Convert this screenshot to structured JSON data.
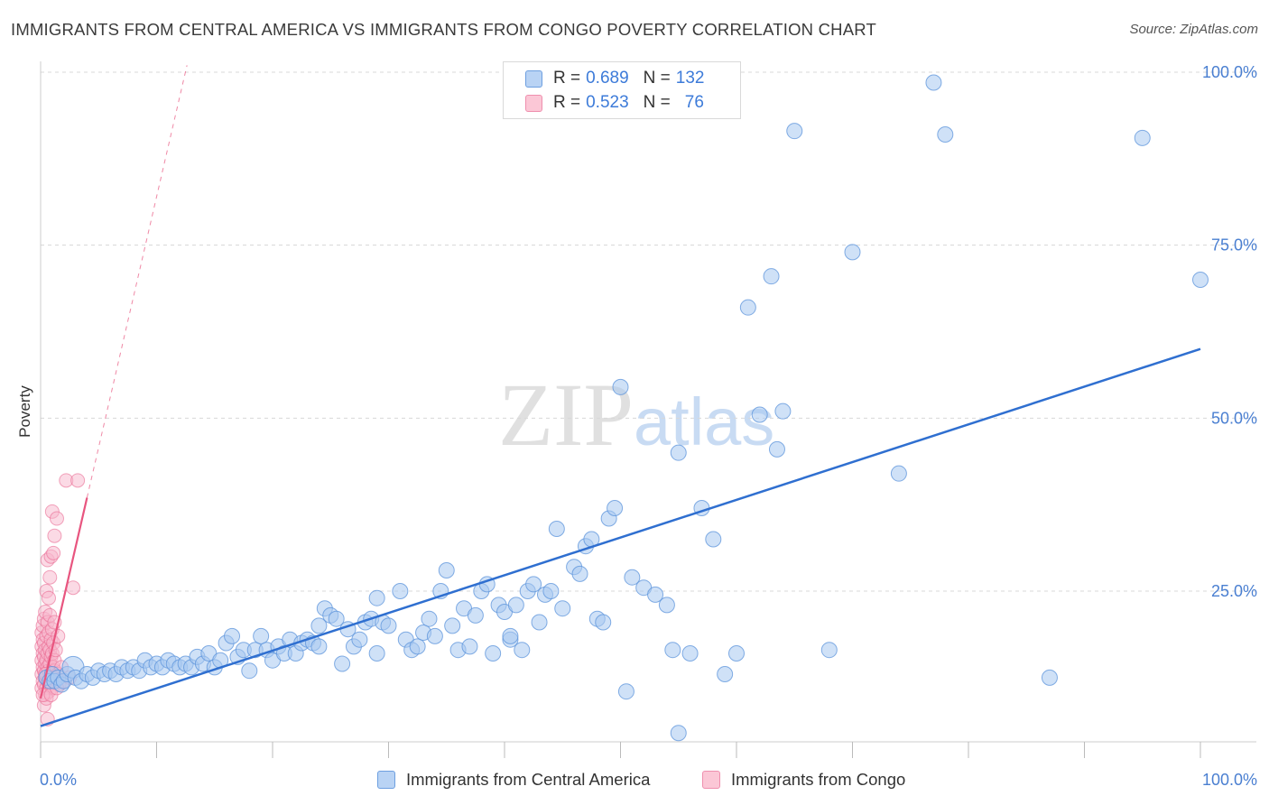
{
  "title": "IMMIGRANTS FROM CENTRAL AMERICA VS IMMIGRANTS FROM CONGO POVERTY CORRELATION CHART",
  "source": "Source: ZipAtlas.com",
  "watermark": {
    "zip": "ZIP",
    "atlas": "atlas"
  },
  "legend": {
    "rows": [
      {
        "r_label": "R = ",
        "r_value": "0.689",
        "n_label": "N = ",
        "n_value": "132"
      },
      {
        "r_label": "R = ",
        "r_value": "0.523",
        "n_label": "N = ",
        "n_value": "76"
      }
    ]
  },
  "colors": {
    "blue_fill": "#a8c8f0",
    "blue_stroke": "#5b93db",
    "blue_line": "#2f6fd0",
    "pink_fill": "#f7b6cb",
    "pink_stroke": "#e96a93",
    "pink_line": "#e8557f",
    "grid": "#d8d8d8",
    "tick_text": "#4a7fd1"
  },
  "chart_data": {
    "type": "scatter",
    "title": "IMMIGRANTS FROM CENTRAL AMERICA VS IMMIGRANTS FROM CONGO POVERTY CORRELATION CHART",
    "xlabel": "",
    "ylabel": "Poverty",
    "xlim": [
      0,
      100
    ],
    "ylim": [
      0,
      105
    ],
    "x_tick_labels": [
      "0.0%",
      "100.0%"
    ],
    "y_tick_labels": [
      "25.0%",
      "50.0%",
      "75.0%",
      "100.0%"
    ],
    "y_ticks": [
      25,
      50,
      75,
      100
    ],
    "grid": true,
    "legend_position": "top-center",
    "series": [
      {
        "name": "Immigrants from Central America",
        "color": "#a8c8f0",
        "trend": {
          "x": [
            0,
            100
          ],
          "y": [
            5.5,
            60
          ]
        },
        "points": [
          [
            0.5,
            12.5
          ],
          [
            0.8,
            12.0
          ],
          [
            1.0,
            13.0
          ],
          [
            1.2,
            12.0
          ],
          [
            1.5,
            12.5
          ],
          [
            1.8,
            11.5
          ],
          [
            2.0,
            12.0
          ],
          [
            2.3,
            13.0
          ],
          [
            2.8,
            14.0
          ],
          [
            3.0,
            12.5
          ],
          [
            3.5,
            12.0
          ],
          [
            4.0,
            13.0
          ],
          [
            4.5,
            12.5
          ],
          [
            5.0,
            13.5
          ],
          [
            5.5,
            13.0
          ],
          [
            6.0,
            13.5
          ],
          [
            6.5,
            13.0
          ],
          [
            7.0,
            14.0
          ],
          [
            7.5,
            13.5
          ],
          [
            8.0,
            14.0
          ],
          [
            8.5,
            13.5
          ],
          [
            9.0,
            15.0
          ],
          [
            9.5,
            14.0
          ],
          [
            10.0,
            14.5
          ],
          [
            10.5,
            14.0
          ],
          [
            11.0,
            15.0
          ],
          [
            11.5,
            14.5
          ],
          [
            12.0,
            14.0
          ],
          [
            12.5,
            14.5
          ],
          [
            13.0,
            14.0
          ],
          [
            13.5,
            15.5
          ],
          [
            14.0,
            14.5
          ],
          [
            14.5,
            16.0
          ],
          [
            15.0,
            14.0
          ],
          [
            15.5,
            15.0
          ],
          [
            16.0,
            17.5
          ],
          [
            16.5,
            18.5
          ],
          [
            17.0,
            15.5
          ],
          [
            17.5,
            16.5
          ],
          [
            18.0,
            13.5
          ],
          [
            18.5,
            16.5
          ],
          [
            19.0,
            18.5
          ],
          [
            19.5,
            16.5
          ],
          [
            20.0,
            15.0
          ],
          [
            20.5,
            17.0
          ],
          [
            21.0,
            16.0
          ],
          [
            21.5,
            18.0
          ],
          [
            22.0,
            16.0
          ],
          [
            22.5,
            17.5
          ],
          [
            23.0,
            18.0
          ],
          [
            23.5,
            17.5
          ],
          [
            24.0,
            20.0
          ],
          [
            24.5,
            22.5
          ],
          [
            25.0,
            21.5
          ],
          [
            25.5,
            21.0
          ],
          [
            26.0,
            14.5
          ],
          [
            26.5,
            19.5
          ],
          [
            27.0,
            17.0
          ],
          [
            27.5,
            18.0
          ],
          [
            28.0,
            20.5
          ],
          [
            28.5,
            21.0
          ],
          [
            29.0,
            24.0
          ],
          [
            29.5,
            20.5
          ],
          [
            30.0,
            20.0
          ],
          [
            31.0,
            25.0
          ],
          [
            31.5,
            18.0
          ],
          [
            32.0,
            16.5
          ],
          [
            32.5,
            17.0
          ],
          [
            33.0,
            19.0
          ],
          [
            33.5,
            21.0
          ],
          [
            34.0,
            18.5
          ],
          [
            34.5,
            25.0
          ],
          [
            35.0,
            28.0
          ],
          [
            35.5,
            20.0
          ],
          [
            36.0,
            16.5
          ],
          [
            36.5,
            22.5
          ],
          [
            37.0,
            17.0
          ],
          [
            37.5,
            21.5
          ],
          [
            38.0,
            25.0
          ],
          [
            38.5,
            26.0
          ],
          [
            39.0,
            16.0
          ],
          [
            39.5,
            23.0
          ],
          [
            40.0,
            22.0
          ],
          [
            40.5,
            18.0
          ],
          [
            41.0,
            23.0
          ],
          [
            41.5,
            16.5
          ],
          [
            42.0,
            25.0
          ],
          [
            42.5,
            26.0
          ],
          [
            43.0,
            20.5
          ],
          [
            43.5,
            24.5
          ],
          [
            44.0,
            25.0
          ],
          [
            44.5,
            34.0
          ],
          [
            45.0,
            22.5
          ],
          [
            46.0,
            28.5
          ],
          [
            46.5,
            27.5
          ],
          [
            47.0,
            31.5
          ],
          [
            47.5,
            32.5
          ],
          [
            48.0,
            21.0
          ],
          [
            48.5,
            20.5
          ],
          [
            49.0,
            35.5
          ],
          [
            49.5,
            37.0
          ],
          [
            50.0,
            54.5
          ],
          [
            50.5,
            10.5
          ],
          [
            51.0,
            27.0
          ],
          [
            52.0,
            25.5
          ],
          [
            53.0,
            24.5
          ],
          [
            54.0,
            23.0
          ],
          [
            54.5,
            16.5
          ],
          [
            55.0,
            4.5
          ],
          [
            56.0,
            16.0
          ],
          [
            57.0,
            37.0
          ],
          [
            58.0,
            32.5
          ],
          [
            59.0,
            13.0
          ],
          [
            60.0,
            16.0
          ],
          [
            61.0,
            66.0
          ],
          [
            62.0,
            50.5
          ],
          [
            63.0,
            70.5
          ],
          [
            64.0,
            51.0
          ],
          [
            65.0,
            91.5
          ],
          [
            68.0,
            16.5
          ],
          [
            70.0,
            74.0
          ],
          [
            74.0,
            42.0
          ],
          [
            77.0,
            98.5
          ],
          [
            78.0,
            91.0
          ],
          [
            87.0,
            12.5
          ],
          [
            95.0,
            90.5
          ],
          [
            100.0,
            70.0
          ],
          [
            63.5,
            45.5
          ],
          [
            55.0,
            45.0
          ],
          [
            40.5,
            18.5
          ],
          [
            29.0,
            16.0
          ],
          [
            24.0,
            17.0
          ]
        ]
      },
      {
        "name": "Immigrants from Congo",
        "color": "#f7b6cb",
        "trend": {
          "x": [
            0,
            4.0
          ],
          "y": [
            9.5,
            38.5
          ]
        },
        "points": [
          [
            0.1,
            11.0
          ],
          [
            0.1,
            13.0
          ],
          [
            0.1,
            15.0
          ],
          [
            0.1,
            17.0
          ],
          [
            0.1,
            19.0
          ],
          [
            0.2,
            12.0
          ],
          [
            0.2,
            14.0
          ],
          [
            0.2,
            16.0
          ],
          [
            0.2,
            18.0
          ],
          [
            0.2,
            20.0
          ],
          [
            0.3,
            11.5
          ],
          [
            0.3,
            13.5
          ],
          [
            0.3,
            15.5
          ],
          [
            0.3,
            17.5
          ],
          [
            0.3,
            21.0
          ],
          [
            0.4,
            10.0
          ],
          [
            0.4,
            12.5
          ],
          [
            0.4,
            14.5
          ],
          [
            0.4,
            16.5
          ],
          [
            0.4,
            22.0
          ],
          [
            0.5,
            11.0
          ],
          [
            0.5,
            13.0
          ],
          [
            0.5,
            15.0
          ],
          [
            0.5,
            18.5
          ],
          [
            0.5,
            25.0
          ],
          [
            0.6,
            12.0
          ],
          [
            0.6,
            14.0
          ],
          [
            0.6,
            16.0
          ],
          [
            0.6,
            20.5
          ],
          [
            0.6,
            29.5
          ],
          [
            0.7,
            10.5
          ],
          [
            0.7,
            13.5
          ],
          [
            0.7,
            17.0
          ],
          [
            0.7,
            19.0
          ],
          [
            0.7,
            24.0
          ],
          [
            0.8,
            11.5
          ],
          [
            0.8,
            14.5
          ],
          [
            0.8,
            16.5
          ],
          [
            0.8,
            21.5
          ],
          [
            0.8,
            27.0
          ],
          [
            0.9,
            12.5
          ],
          [
            0.9,
            15.5
          ],
          [
            0.9,
            18.0
          ],
          [
            0.9,
            30.0
          ],
          [
            1.0,
            11.0
          ],
          [
            1.0,
            13.0
          ],
          [
            1.0,
            16.0
          ],
          [
            1.0,
            19.5
          ],
          [
            1.0,
            36.5
          ],
          [
            1.1,
            12.0
          ],
          [
            1.1,
            14.0
          ],
          [
            1.1,
            17.5
          ],
          [
            1.1,
            30.5
          ],
          [
            1.2,
            13.5
          ],
          [
            1.2,
            15.0
          ],
          [
            1.2,
            20.5
          ],
          [
            1.2,
            33.0
          ],
          [
            1.3,
            12.5
          ],
          [
            1.3,
            16.5
          ],
          [
            1.4,
            35.5
          ],
          [
            1.5,
            13.0
          ],
          [
            1.5,
            18.5
          ],
          [
            1.6,
            11.5
          ],
          [
            1.8,
            14.0
          ],
          [
            2.0,
            12.0
          ],
          [
            2.2,
            41.0
          ],
          [
            2.5,
            12.5
          ],
          [
            2.8,
            25.5
          ],
          [
            3.2,
            41.0
          ],
          [
            0.6,
            6.5
          ],
          [
            0.3,
            8.5
          ],
          [
            0.5,
            9.5
          ],
          [
            0.2,
            10.0
          ],
          [
            0.9,
            10.0
          ],
          [
            1.4,
            11.0
          ],
          [
            0.4,
            13.0
          ]
        ]
      }
    ]
  },
  "bottom_legend": [
    {
      "label": "Immigrants from Central America"
    },
    {
      "label": "Immigrants from Congo"
    }
  ]
}
